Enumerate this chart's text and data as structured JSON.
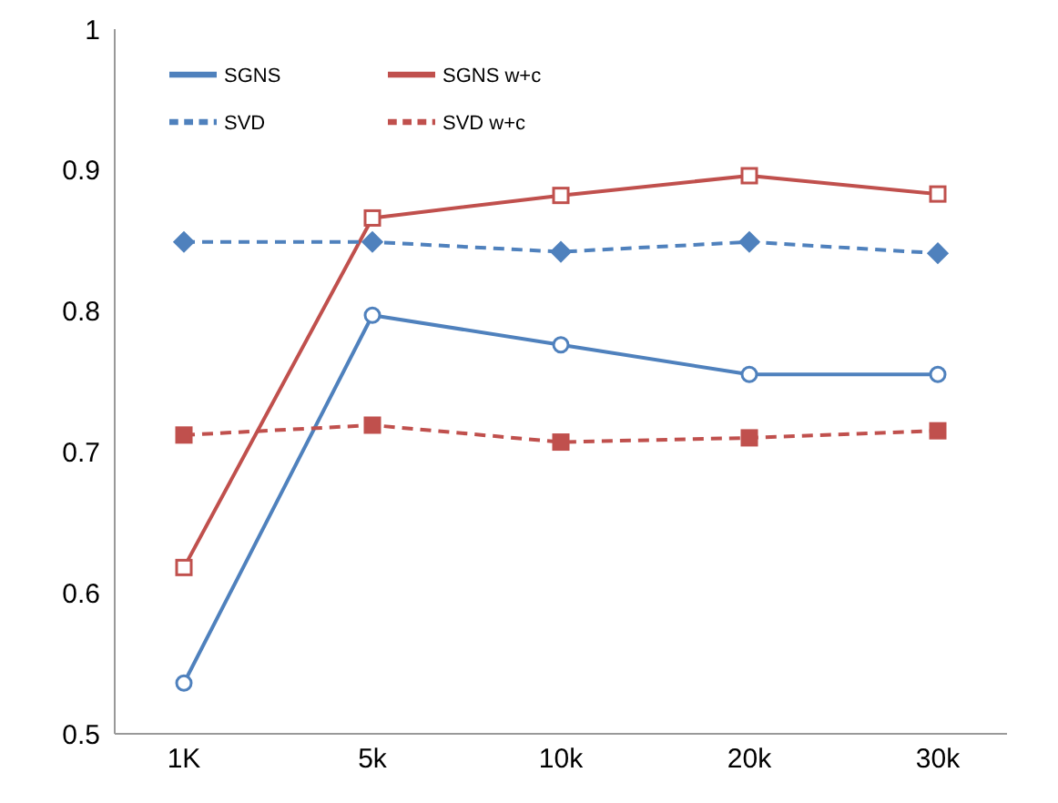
{
  "chart_data": {
    "type": "line",
    "categories": [
      "1K",
      "5k",
      "10k",
      "20k",
      "30k"
    ],
    "ylim": [
      0.5,
      1
    ],
    "yticks": [
      0.5,
      0.6,
      0.7,
      0.8,
      0.9,
      1
    ],
    "grid": false,
    "legend": "top left",
    "series": [
      {
        "name": "SGNS",
        "color": "#4f81bd",
        "marker": "circle",
        "line_style": "solid",
        "values": [
          0.536,
          0.797,
          0.776,
          0.755,
          0.755
        ]
      },
      {
        "name": "SGNS w+c",
        "color": "#c0504d",
        "marker": "square",
        "line_style": "solid",
        "values": [
          0.618,
          0.866,
          0.882,
          0.896,
          0.883
        ]
      },
      {
        "name": "SVD",
        "color": "#4f81bd",
        "marker": "diamond",
        "line_style": "dashed",
        "values": [
          0.849,
          0.849,
          0.842,
          0.849,
          0.841
        ]
      },
      {
        "name": "SVD w+c",
        "color": "#c0504d",
        "marker": "square",
        "line_style": "dashed",
        "values": [
          0.712,
          0.719,
          0.707,
          0.71,
          0.715
        ]
      }
    ]
  }
}
